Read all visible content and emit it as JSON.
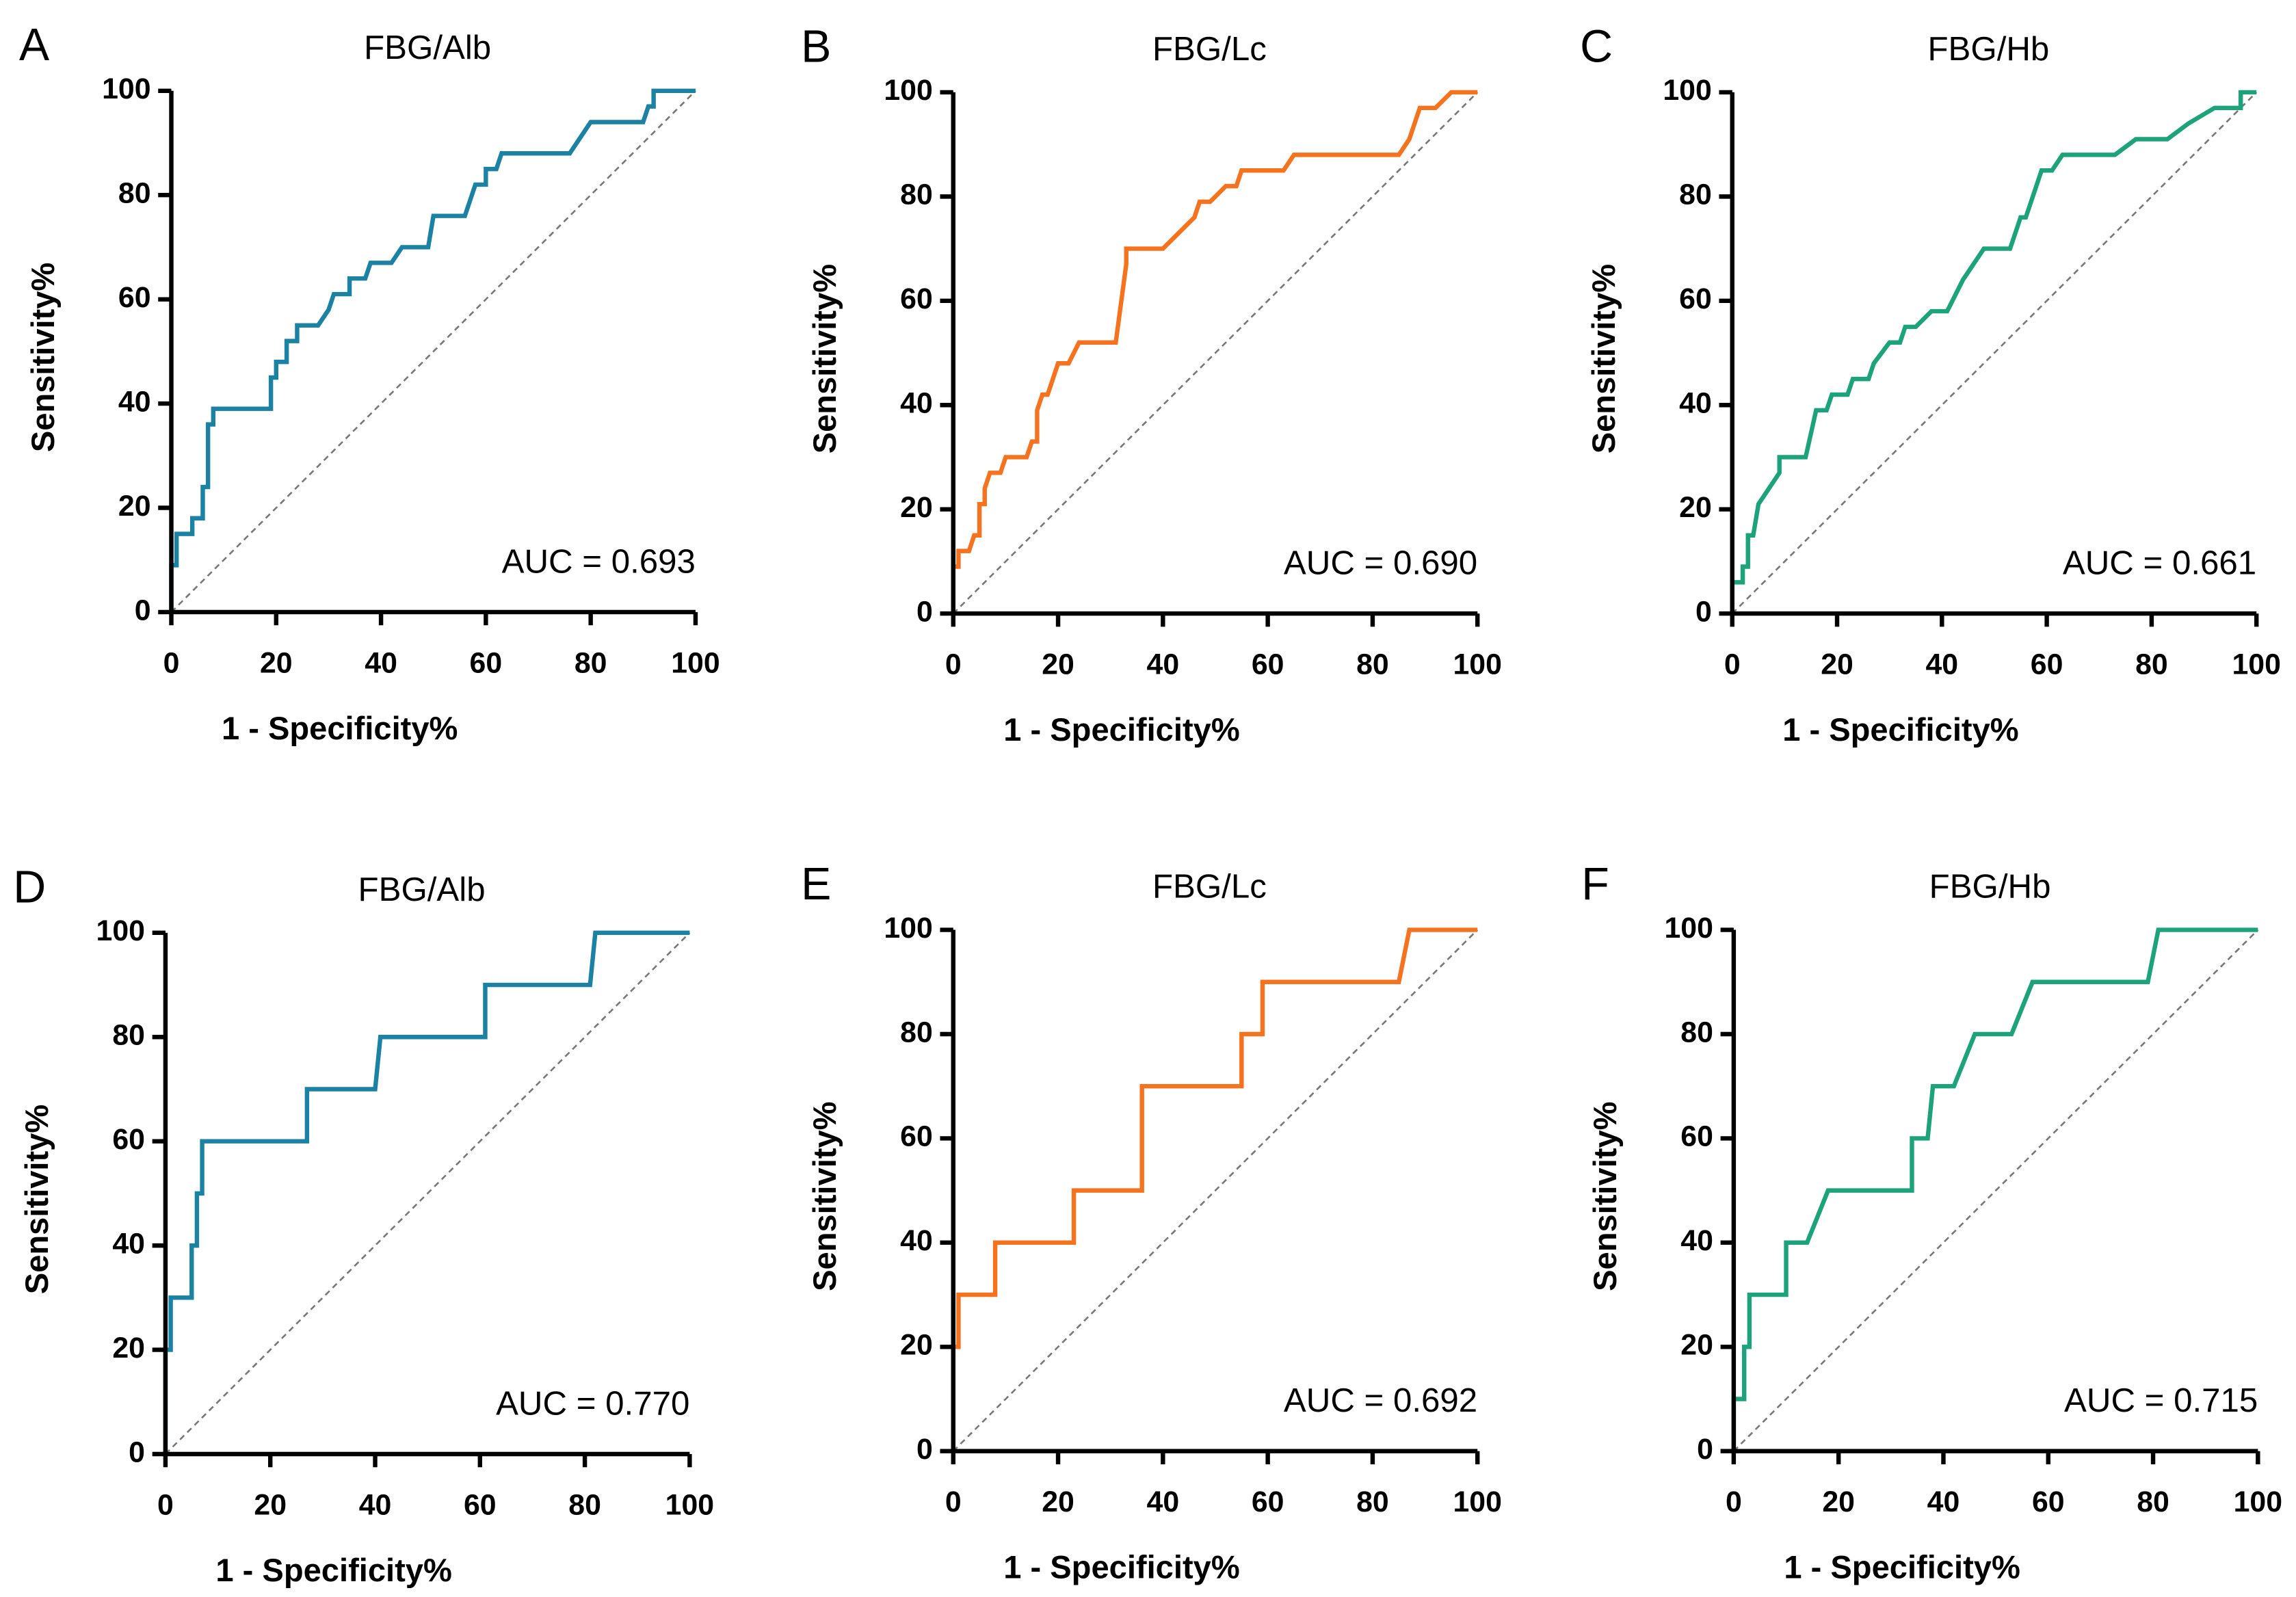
{
  "chart_data": [
    {
      "type": "line",
      "panel_label": "A",
      "title": "FBG/Alb",
      "x_label": "1 - Specificity%",
      "y_label": "Sensitivity%",
      "annotation": "AUC = 0.693",
      "x": [
        0,
        0,
        1,
        1,
        1,
        4,
        4,
        6,
        6,
        7,
        7,
        8,
        8,
        19,
        19,
        20,
        20,
        22,
        22,
        24,
        24,
        28,
        30,
        31,
        34,
        34,
        37,
        38,
        42,
        44,
        49,
        50,
        56,
        57,
        58,
        60,
        60,
        62,
        63,
        76,
        80,
        90,
        91,
        92,
        92,
        100
      ],
      "series": [
        {
          "color": "#1b82a3",
          "values": [
            0,
            9,
            9,
            12,
            15,
            15,
            18,
            18,
            24,
            24,
            36,
            36,
            39,
            39,
            45,
            45,
            48,
            48,
            52,
            52,
            55,
            55,
            58,
            61,
            61,
            64,
            64,
            67,
            67,
            70,
            70,
            76,
            76,
            79,
            82,
            82,
            85,
            85,
            88,
            88,
            94,
            94,
            97,
            97,
            100,
            100
          ]
        }
      ],
      "xlim": [
        0,
        100
      ],
      "ylim": [
        0,
        100
      ],
      "xticks": [
        0,
        20,
        40,
        60,
        80,
        100
      ],
      "yticks": [
        0,
        20,
        40,
        60,
        80,
        100
      ]
    },
    {
      "type": "line",
      "panel_label": "B",
      "title": "FBG/Lc",
      "x_label": "1 - Specificity%",
      "y_label": "Sensitivity%",
      "annotation": "AUC = 0.690",
      "x": [
        0,
        0,
        1,
        1,
        3,
        4,
        5,
        5,
        6,
        6,
        7,
        9,
        10,
        14,
        15,
        16,
        16,
        17,
        18,
        20,
        22,
        24,
        31,
        33,
        33,
        35,
        40,
        43,
        46,
        47,
        49,
        52,
        54,
        55,
        59,
        63,
        65,
        85,
        87,
        89,
        92,
        95,
        100
      ],
      "series": [
        {
          "color": "#f5731e",
          "values": [
            0,
            9,
            9,
            12,
            12,
            15,
            15,
            21,
            21,
            24,
            27,
            27,
            30,
            30,
            33,
            33,
            39,
            42,
            42,
            48,
            48,
            52,
            52,
            67,
            70,
            70,
            70,
            73,
            76,
            79,
            79,
            82,
            82,
            85,
            85,
            85,
            88,
            88,
            91,
            97,
            97,
            100,
            100
          ]
        }
      ],
      "xlim": [
        0,
        100
      ],
      "ylim": [
        0,
        100
      ],
      "xticks": [
        0,
        20,
        40,
        60,
        80,
        100
      ],
      "yticks": [
        0,
        20,
        40,
        60,
        80,
        100
      ]
    },
    {
      "type": "line",
      "panel_label": "C",
      "title": "FBG/Hb",
      "x_label": "1 - Specificity%",
      "y_label": "Sensitivity%",
      "annotation": "AUC = 0.661",
      "x": [
        0,
        0,
        2,
        2,
        3,
        3,
        4,
        5,
        7,
        9,
        9,
        14,
        16,
        18,
        19,
        22,
        23,
        26,
        27,
        30,
        32,
        33,
        35,
        38,
        41,
        44,
        46,
        48,
        53,
        54,
        55,
        56,
        57,
        59,
        61,
        63,
        73,
        77,
        83,
        87,
        92,
        97,
        97,
        100
      ],
      "series": [
        {
          "color": "#1da37b",
          "values": [
            0,
            6,
            6,
            9,
            9,
            15,
            15,
            21,
            24,
            27,
            30,
            30,
            39,
            39,
            42,
            42,
            45,
            45,
            48,
            52,
            52,
            55,
            55,
            58,
            58,
            64,
            67,
            70,
            70,
            73,
            76,
            76,
            79,
            85,
            85,
            88,
            88,
            91,
            91,
            94,
            97,
            97,
            100,
            100
          ]
        }
      ],
      "xlim": [
        0,
        100
      ],
      "ylim": [
        0,
        100
      ],
      "xticks": [
        0,
        20,
        40,
        60,
        80,
        100
      ],
      "yticks": [
        0,
        20,
        40,
        60,
        80,
        100
      ]
    },
    {
      "type": "line",
      "panel_label": "D",
      "title": "FBG/Alb",
      "x_label": "1 - Specificity%",
      "y_label": "Sensitivity%",
      "annotation": "AUC = 0.770",
      "x": [
        0,
        0,
        1,
        1,
        5,
        5,
        6,
        6,
        7,
        7,
        27,
        27,
        40,
        41,
        61,
        61,
        81,
        82,
        100
      ],
      "series": [
        {
          "color": "#1b82a3",
          "values": [
            0,
            20,
            20,
            30,
            30,
            40,
            40,
            50,
            50,
            60,
            60,
            70,
            70,
            80,
            80,
            90,
            90,
            100,
            100
          ]
        }
      ],
      "xlim": [
        0,
        100
      ],
      "ylim": [
        0,
        100
      ],
      "xticks": [
        0,
        20,
        40,
        60,
        80,
        100
      ],
      "yticks": [
        0,
        20,
        40,
        60,
        80,
        100
      ]
    },
    {
      "type": "line",
      "panel_label": "E",
      "title": "FBG/Lc",
      "x_label": "1 - Specificity%",
      "y_label": "Sensitivity%",
      "annotation": "AUC = 0.692",
      "x": [
        0,
        0,
        1,
        1,
        8,
        8,
        23,
        23,
        36,
        36,
        55,
        55,
        59,
        59,
        85,
        87,
        100
      ],
      "series": [
        {
          "color": "#f5731e",
          "values": [
            0,
            20,
            20,
            30,
            30,
            40,
            40,
            50,
            50,
            70,
            70,
            80,
            80,
            90,
            90,
            100,
            100
          ]
        }
      ],
      "xlim": [
        0,
        100
      ],
      "ylim": [
        0,
        100
      ],
      "xticks": [
        0,
        20,
        40,
        60,
        80,
        100
      ],
      "yticks": [
        0,
        20,
        40,
        60,
        80,
        100
      ]
    },
    {
      "type": "line",
      "panel_label": "F",
      "title": "FBG/Hb",
      "x_label": "1 - Specificity%",
      "y_label": "Sensitivity%",
      "annotation": "AUC = 0.715",
      "x": [
        0,
        0,
        2,
        2,
        3,
        3,
        10,
        10,
        14,
        18,
        34,
        34,
        37,
        38,
        42,
        46,
        53,
        57,
        79,
        81,
        100
      ],
      "series": [
        {
          "color": "#1da37b",
          "values": [
            0,
            10,
            10,
            20,
            20,
            30,
            30,
            40,
            40,
            50,
            50,
            60,
            60,
            70,
            70,
            80,
            80,
            90,
            90,
            100,
            100
          ]
        }
      ],
      "xlim": [
        0,
        100
      ],
      "ylim": [
        0,
        100
      ],
      "xticks": [
        0,
        20,
        40,
        60,
        80,
        100
      ],
      "yticks": [
        0,
        20,
        40,
        60,
        80,
        100
      ]
    }
  ]
}
